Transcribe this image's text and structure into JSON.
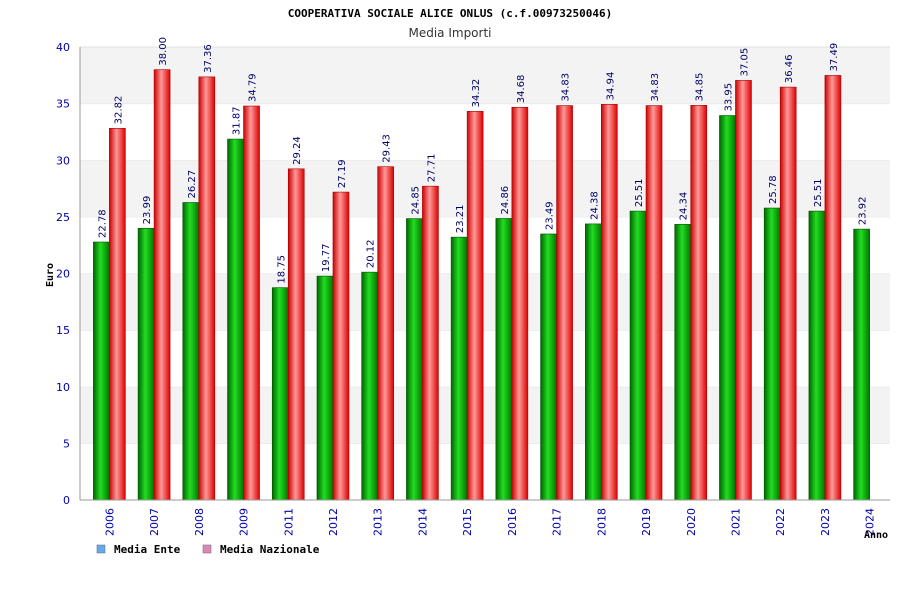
{
  "chart_data": {
    "type": "bar",
    "title": "COOPERATIVA SOCIALE ALICE ONLUS (c.f.00973250046)",
    "subtitle": "Media Importi",
    "xlabel": "Anno",
    "ylabel": "Euro",
    "ylim": [
      0,
      40
    ],
    "yticks": [
      0,
      5,
      10,
      15,
      20,
      25,
      30,
      35,
      40
    ],
    "grid": "horizontal bands",
    "legend_position": "bottom-left",
    "categories": [
      "2006",
      "2007",
      "2008",
      "2009",
      "2011",
      "2012",
      "2013",
      "2014",
      "2015",
      "2016",
      "2017",
      "2018",
      "2019",
      "2020",
      "2021",
      "2022",
      "2023",
      "2024"
    ],
    "series": [
      {
        "name": "Media Ente",
        "color": "#00aa00",
        "legend_color": "#66aaee",
        "values": [
          22.78,
          23.99,
          26.27,
          31.87,
          18.75,
          19.77,
          20.12,
          24.85,
          23.21,
          24.86,
          23.49,
          24.38,
          25.51,
          24.34,
          33.95,
          25.78,
          25.51,
          23.92
        ]
      },
      {
        "name": "Media Nazionale",
        "color": "#ee1111",
        "legend_color": "#dd88bb",
        "values": [
          32.82,
          38.0,
          37.36,
          34.79,
          29.24,
          27.19,
          29.43,
          27.71,
          34.32,
          34.68,
          34.83,
          34.94,
          34.83,
          34.85,
          37.05,
          36.46,
          37.49,
          null
        ]
      }
    ],
    "value_labels": [
      [
        "22.78",
        "23.99",
        "26.27",
        "31.87",
        "18.75",
        "19.77",
        "20.12",
        "24.85",
        "23.21",
        "24.86",
        "23.49",
        "24.38",
        "25.51",
        "24.34",
        "33.95",
        "25.78",
        "25.51",
        "23.92"
      ],
      [
        "32.82",
        "38.00",
        "37.36",
        "34.79",
        "29.24",
        "27.19",
        "29.43",
        "27.71",
        "34.32",
        "34.68",
        "34.83",
        "34.94",
        "34.83",
        "34.85",
        "37.05",
        "36.46",
        "37.49",
        null
      ]
    ]
  }
}
